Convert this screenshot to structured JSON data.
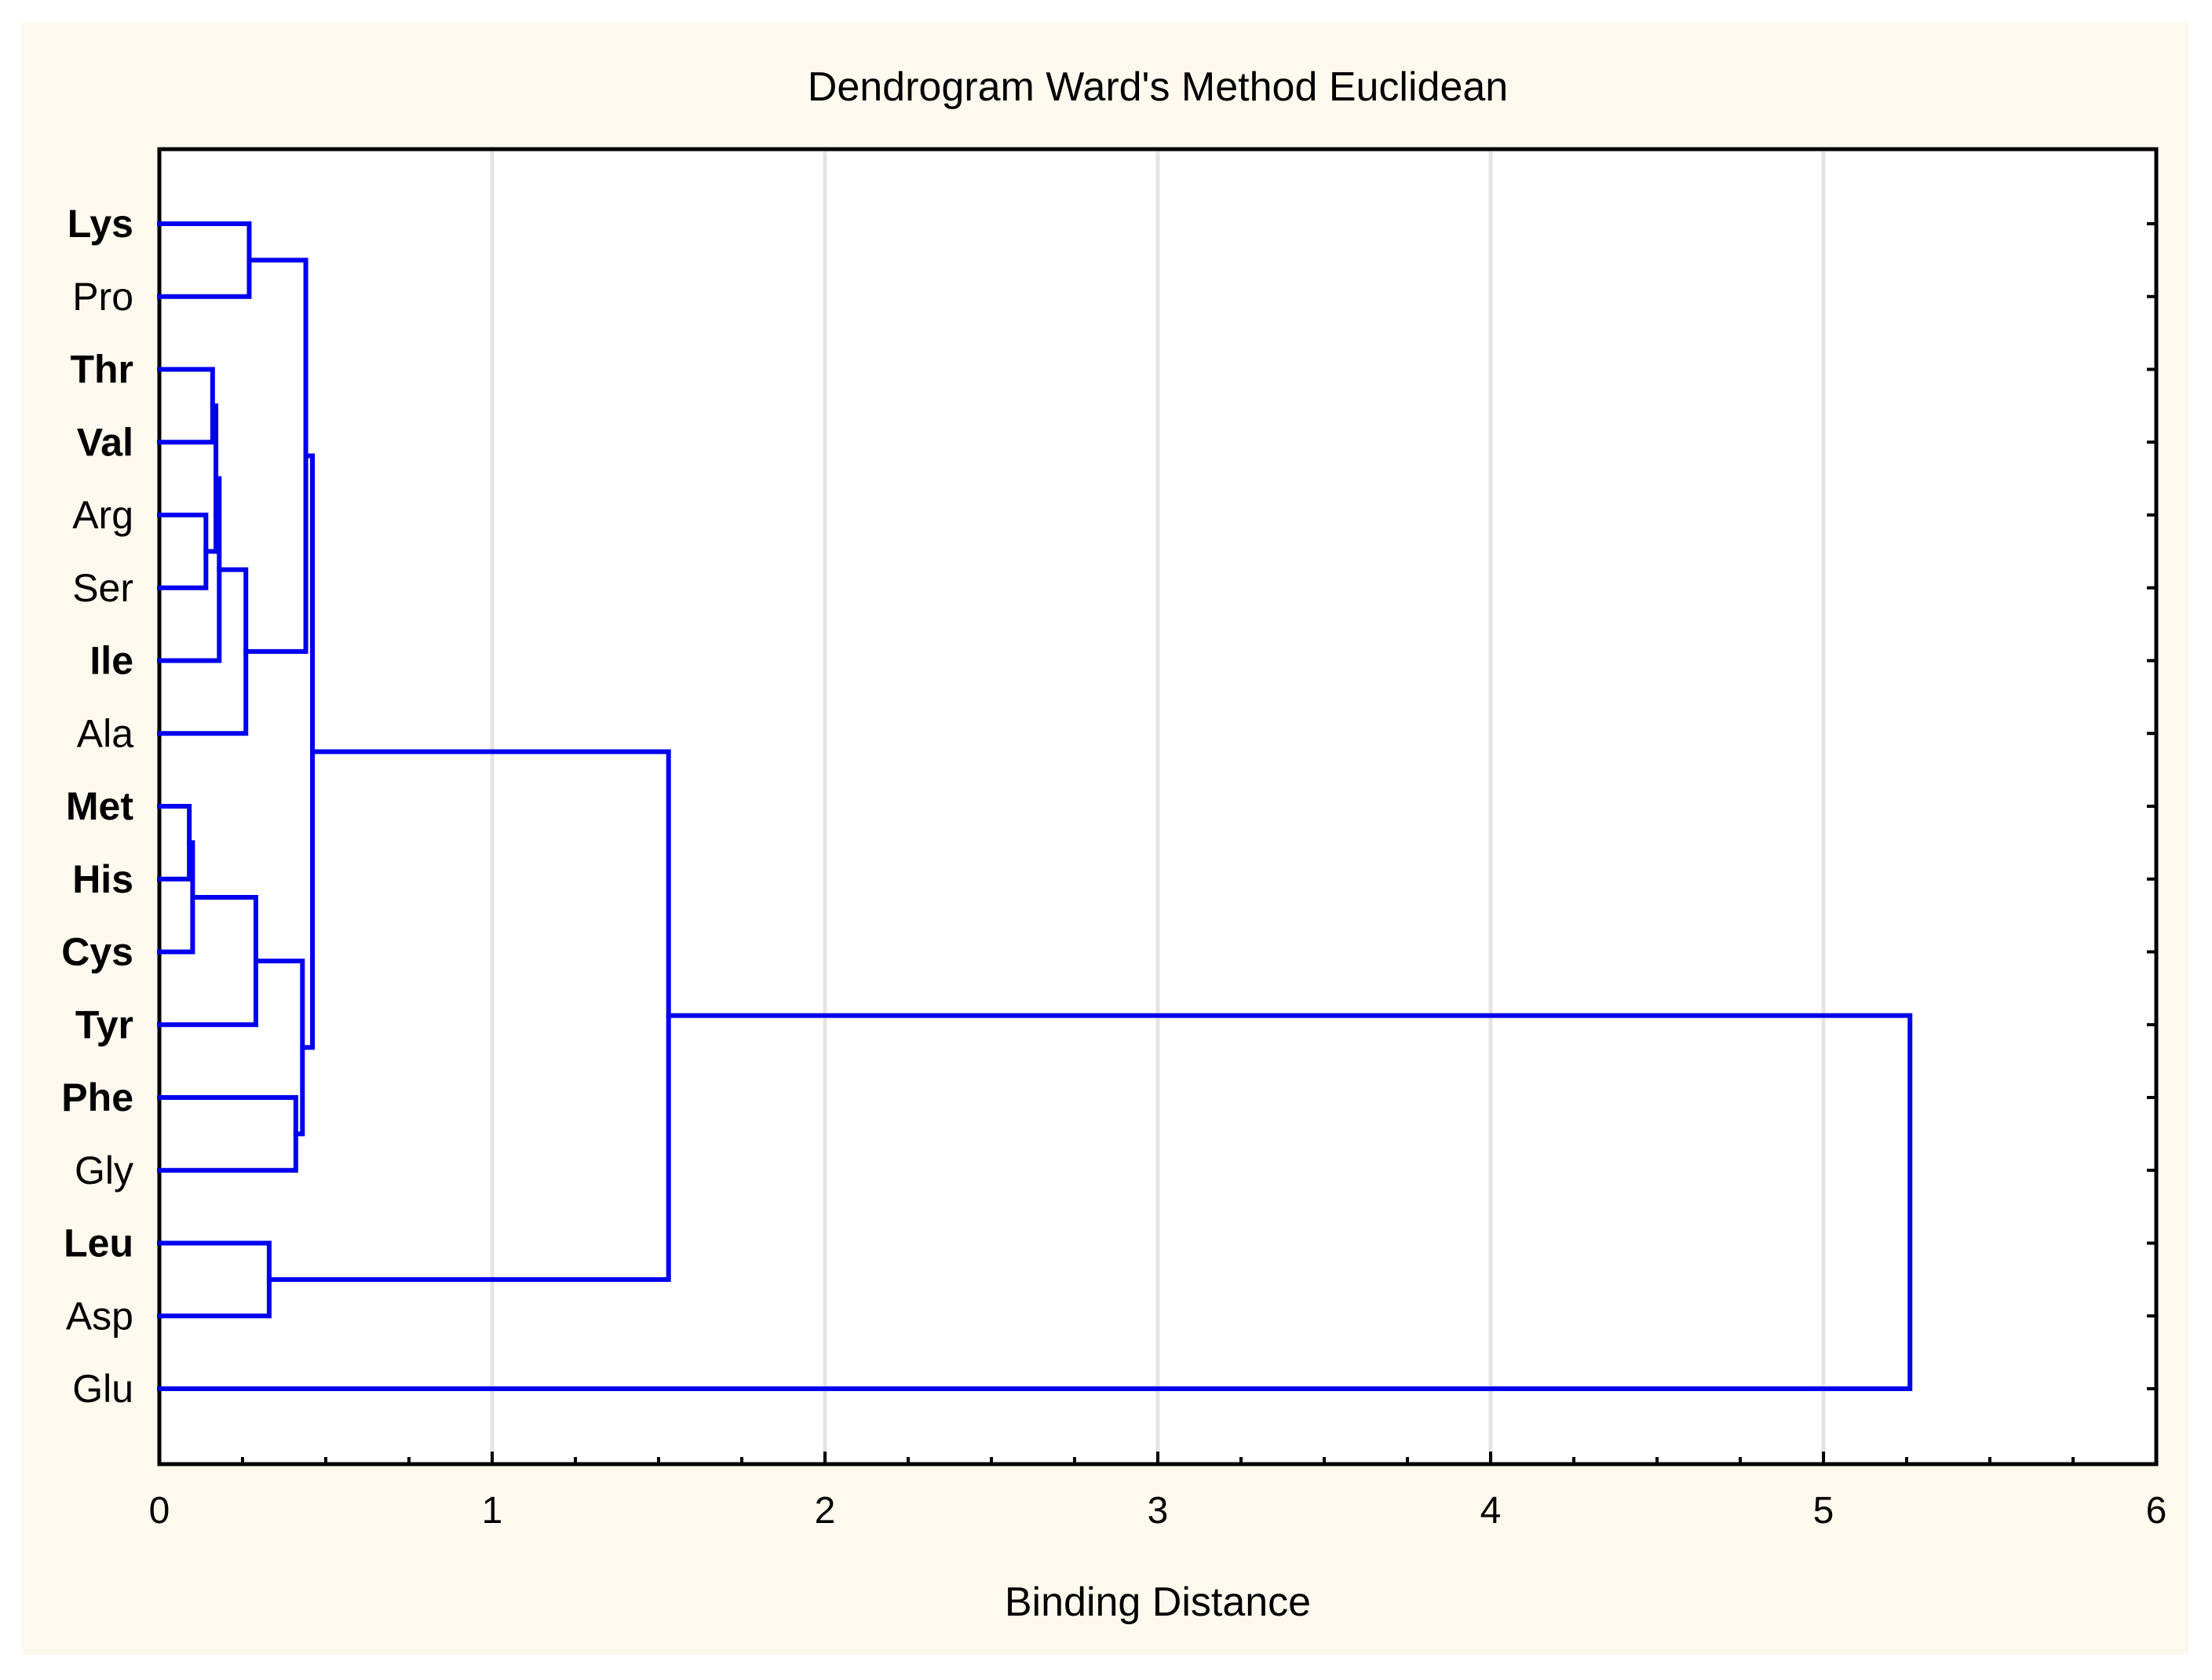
{
  "chart_data": {
    "type": "dendrogram",
    "title": "Dendrogram Ward's Method Euclidean",
    "xlabel": "Binding Distance",
    "xlim": [
      0,
      6
    ],
    "x_ticks": [
      "0",
      "1",
      "2",
      "3",
      "4",
      "5",
      "6"
    ],
    "grid": true,
    "line_color": "#0000ee",
    "leaves": [
      {
        "label": "Lys",
        "bold": true
      },
      {
        "label": "Pro",
        "bold": false
      },
      {
        "label": "Thr",
        "bold": true
      },
      {
        "label": "Val",
        "bold": true
      },
      {
        "label": "Arg",
        "bold": false
      },
      {
        "label": "Ser",
        "bold": false
      },
      {
        "label": "Ile",
        "bold": true
      },
      {
        "label": "Ala",
        "bold": false
      },
      {
        "label": "Met",
        "bold": true
      },
      {
        "label": "His",
        "bold": true
      },
      {
        "label": "Cys",
        "bold": true
      },
      {
        "label": "Tyr",
        "bold": true
      },
      {
        "label": "Phe",
        "bold": true
      },
      {
        "label": "Gly",
        "bold": false
      },
      {
        "label": "Leu",
        "bold": true
      },
      {
        "label": "Asp",
        "bold": false
      },
      {
        "label": "Glu",
        "bold": false
      }
    ],
    "merges": [
      {
        "id": "A",
        "children": [
          "Met",
          "His"
        ],
        "height": 0.09
      },
      {
        "id": "B",
        "children": [
          "A",
          "Cys"
        ],
        "height": 0.1
      },
      {
        "id": "C",
        "children": [
          "Arg",
          "Ser"
        ],
        "height": 0.14
      },
      {
        "id": "D",
        "children": [
          "Thr",
          "Val"
        ],
        "height": 0.16
      },
      {
        "id": "E",
        "children": [
          "D",
          "C"
        ],
        "height": 0.17
      },
      {
        "id": "F",
        "children": [
          "E",
          "Ile"
        ],
        "height": 0.18
      },
      {
        "id": "G",
        "children": [
          "F",
          "Ala"
        ],
        "height": 0.26
      },
      {
        "id": "H",
        "children": [
          "Lys",
          "Pro"
        ],
        "height": 0.27
      },
      {
        "id": "I",
        "children": [
          "B",
          "Tyr"
        ],
        "height": 0.29
      },
      {
        "id": "J",
        "children": [
          "Leu",
          "Asp"
        ],
        "height": 0.33
      },
      {
        "id": "K",
        "children": [
          "Phe",
          "Gly"
        ],
        "height": 0.41
      },
      {
        "id": "L",
        "children": [
          "I",
          "K"
        ],
        "height": 0.43
      },
      {
        "id": "M",
        "children": [
          "H",
          "G"
        ],
        "height": 0.44
      },
      {
        "id": "N",
        "children": [
          "M",
          "L"
        ],
        "height": 0.46
      },
      {
        "id": "O",
        "children": [
          "N",
          "J"
        ],
        "height": 1.53
      },
      {
        "id": "P",
        "children": [
          "O",
          "Glu"
        ],
        "height": 5.26
      }
    ]
  }
}
